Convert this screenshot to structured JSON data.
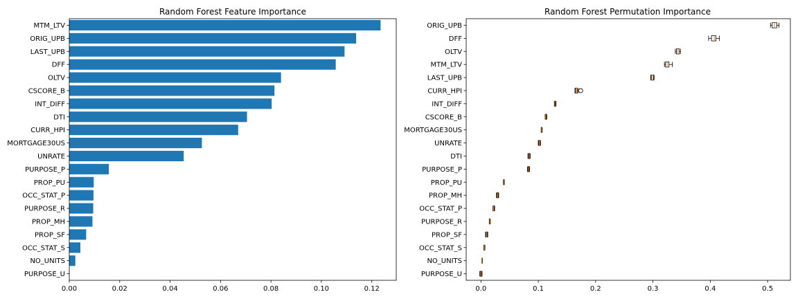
{
  "chart_data": [
    {
      "type": "bar",
      "orientation": "horizontal",
      "title": "Random Forest Feature Importance",
      "categories": [
        "MTM_LTV",
        "ORIG_UPB",
        "LAST_UPB",
        "DFF",
        "OLTV",
        "CSCORE_B",
        "INT_DIFF",
        "DTI",
        "CURR_HPI",
        "MORTGAGE30US",
        "UNRATE",
        "PURPOSE_P",
        "PROP_PU",
        "OCC_STAT_P",
        "PURPOSE_R",
        "PROP_MH",
        "PROP_SF",
        "OCC_STAT_S",
        "NO_UNITS",
        "PURPOSE_U"
      ],
      "values": [
        0.1235,
        0.1138,
        0.1092,
        0.1057,
        0.084,
        0.0814,
        0.0803,
        0.0705,
        0.067,
        0.0526,
        0.0454,
        0.0157,
        0.0097,
        0.0096,
        0.0095,
        0.0092,
        0.0067,
        0.0044,
        0.0024,
        0.0001
      ],
      "xlim": [
        0.0,
        0.1297
      ],
      "xticks": [
        0.0,
        0.02,
        0.04,
        0.06,
        0.08,
        0.1,
        0.12
      ],
      "xtick_labels": [
        "0.00",
        "0.02",
        "0.04",
        "0.06",
        "0.08",
        "0.10",
        "0.12"
      ],
      "color": "#1f77b4",
      "grid": false
    },
    {
      "type": "box",
      "orientation": "horizontal",
      "title": "Random Forest Permutation Importance",
      "categories": [
        "ORIG_UPB",
        "DFF",
        "OLTV",
        "MTM_LTV",
        "LAST_UPB",
        "CURR_HPI",
        "INT_DIFF",
        "CSCORE_B",
        "MORTGAGE30US",
        "UNRATE",
        "DTI",
        "PURPOSE_P",
        "PROP_PU",
        "PROP_MH",
        "OCC_STAT_P",
        "PURPOSE_R",
        "PROP_SF",
        "OCC_STAT_S",
        "NO_UNITS",
        "PURPOSE_U"
      ],
      "boxes": [
        {
          "whislo": 0.505,
          "q1": 0.508,
          "med": 0.512,
          "q3": 0.516,
          "whishi": 0.52,
          "fliers": []
        },
        {
          "whislo": 0.397,
          "q1": 0.402,
          "med": 0.407,
          "q3": 0.41,
          "whishi": 0.416,
          "fliers": []
        },
        {
          "whislo": 0.339,
          "q1": 0.341,
          "med": 0.343,
          "q3": 0.346,
          "whishi": 0.348,
          "fliers": []
        },
        {
          "whislo": 0.32,
          "q1": 0.322,
          "med": 0.325,
          "q3": 0.328,
          "whishi": 0.334,
          "fliers": []
        },
        {
          "whislo": 0.296,
          "q1": 0.297,
          "med": 0.299,
          "q3": 0.301,
          "whishi": 0.302,
          "fliers": []
        },
        {
          "whislo": 0.164,
          "q1": 0.165,
          "med": 0.167,
          "q3": 0.168,
          "whishi": 0.17,
          "fliers": [
            0.174
          ]
        },
        {
          "whislo": 0.128,
          "q1": 0.1285,
          "med": 0.129,
          "q3": 0.13,
          "whishi": 0.131,
          "fliers": []
        },
        {
          "whislo": 0.112,
          "q1": 0.1125,
          "med": 0.113,
          "q3": 0.114,
          "whishi": 0.115,
          "fliers": []
        },
        {
          "whislo": 0.105,
          "q1": 0.1055,
          "med": 0.106,
          "q3": 0.1065,
          "whishi": 0.107,
          "fliers": []
        },
        {
          "whislo": 0.1,
          "q1": 0.101,
          "med": 0.102,
          "q3": 0.103,
          "whishi": 0.104,
          "fliers": []
        },
        {
          "whislo": 0.082,
          "q1": 0.083,
          "med": 0.084,
          "q3": 0.085,
          "whishi": 0.086,
          "fliers": []
        },
        {
          "whislo": 0.081,
          "q1": 0.082,
          "med": 0.083,
          "q3": 0.084,
          "whishi": 0.085,
          "fliers": []
        },
        {
          "whislo": 0.039,
          "q1": 0.0395,
          "med": 0.04,
          "q3": 0.0405,
          "whishi": 0.041,
          "fliers": []
        },
        {
          "whislo": 0.027,
          "q1": 0.028,
          "med": 0.029,
          "q3": 0.03,
          "whishi": 0.031,
          "fliers": []
        },
        {
          "whislo": 0.021,
          "q1": 0.0215,
          "med": 0.022,
          "q3": 0.023,
          "whishi": 0.024,
          "fliers": []
        },
        {
          "whislo": 0.0145,
          "q1": 0.015,
          "med": 0.0155,
          "q3": 0.016,
          "whishi": 0.0165,
          "fliers": []
        },
        {
          "whislo": 0.008,
          "q1": 0.009,
          "med": 0.01,
          "q3": 0.011,
          "whishi": 0.012,
          "fliers": []
        },
        {
          "whislo": 0.005,
          "q1": 0.0055,
          "med": 0.006,
          "q3": 0.0065,
          "whishi": 0.007,
          "fliers": []
        },
        {
          "whislo": 0.0015,
          "q1": 0.0017,
          "med": 0.0019,
          "q3": 0.0021,
          "whishi": 0.0023,
          "fliers": []
        },
        {
          "whislo": -0.002,
          "q1": -0.001,
          "med": 0.0,
          "q3": 0.001,
          "whishi": 0.002,
          "fliers": []
        }
      ],
      "xlim": [
        -0.0257,
        0.5397
      ],
      "xticks": [
        0.0,
        0.1,
        0.2,
        0.3,
        0.4,
        0.5
      ],
      "xtick_labels": [
        "0.0",
        "0.1",
        "0.2",
        "0.3",
        "0.4",
        "0.5"
      ],
      "box_color": "#000000",
      "median_color": "#ff7f0e",
      "grid": false
    }
  ]
}
